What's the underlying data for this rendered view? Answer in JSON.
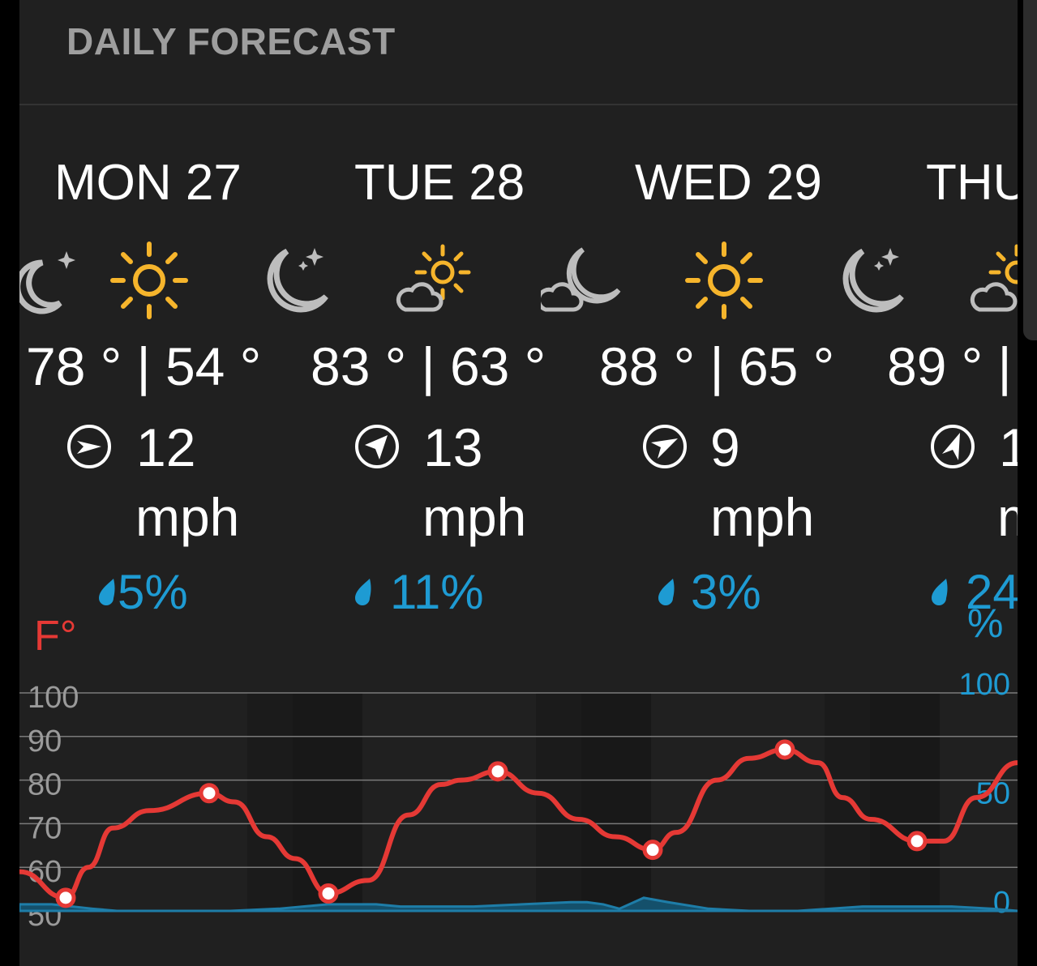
{
  "header": {
    "title": "DAILY FORECAST"
  },
  "colors": {
    "temp_line": "#e53935",
    "precip_line": "#1e7da8",
    "temp_axis": "#e53935",
    "precip_axis": "#1e9bd3",
    "sun_icon": "#f6b52c",
    "moon_icon": "#bdbdbd"
  },
  "days": [
    {
      "label": "MON 27",
      "day_icon": "sun-icon",
      "night_icon": "moon-stars-icon",
      "high": "78",
      "low": "54",
      "temps_text": "78 ° | 54 °",
      "wind_speed": "12",
      "wind_unit": "mph",
      "wind_icon": "wind-direction-icon",
      "precip": "5%"
    },
    {
      "label": "TUE 28",
      "day_icon": "sun-cloud-icon",
      "night_icon": "moon-cloud-icon",
      "high": "83",
      "low": "63",
      "temps_text": "83 ° | 63 °",
      "wind_speed": "13",
      "wind_unit": "mph",
      "wind_icon": "wind-direction-icon",
      "precip": "11%"
    },
    {
      "label": "WED 29",
      "day_icon": "sun-icon",
      "night_icon": "moon-stars-icon",
      "high": "88",
      "low": "65",
      "temps_text": "88 ° | 65 °",
      "wind_speed": "9",
      "wind_unit": "mph",
      "wind_icon": "wind-direction-icon",
      "precip": "3%"
    },
    {
      "label": "THU",
      "day_icon": "sun-cloud-icon",
      "night_icon": "",
      "high": "89",
      "low": "",
      "temps_text": "89 ° |",
      "wind_speed": "1",
      "wind_unit": "m",
      "wind_icon": "wind-direction-icon",
      "precip": "24",
      "precip_unit": "%"
    }
  ],
  "chart_data": {
    "type": "line",
    "left_axis_unit": "F°",
    "left_ticks": [
      "100",
      "90",
      "80",
      "70",
      "60",
      "50"
    ],
    "left_ylim": [
      50,
      100
    ],
    "right_ticks": [
      "100",
      "50",
      "0"
    ],
    "right_ylim": [
      0,
      100
    ],
    "grid": true,
    "series": [
      {
        "points_hourly": "temperature",
        "marker_values": [
          53,
          77,
          54,
          82,
          64,
          87,
          66
        ],
        "marker_labels": [
          "low",
          "high",
          "low",
          "high",
          "low",
          "high",
          "low"
        ]
      },
      {
        "points_hourly": "precipitation",
        "peak": 5
      }
    ]
  }
}
